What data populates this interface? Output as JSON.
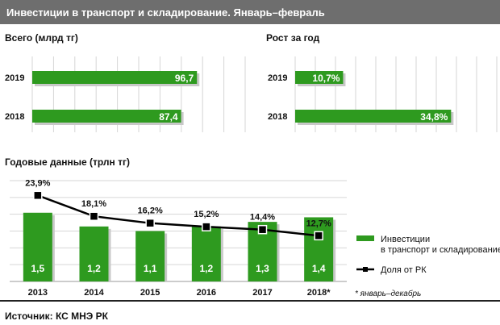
{
  "title": "Инвестиции  в транспорт и складирование. Январь–февраль",
  "source": "Источник:  КС  МНЭ РК",
  "footnote": "* январь–декабрь",
  "colors": {
    "bar": "#2e9a1f",
    "line": "#000000",
    "header": "#6e6e6e"
  },
  "chart_data": [
    {
      "type": "bar",
      "orientation": "horizontal",
      "title": "Всего (млрд тг)",
      "categories": [
        "2019",
        "2018"
      ],
      "values": [
        96.7,
        87.4
      ],
      "labels": [
        "96,7",
        "87,4"
      ],
      "xlim": [
        0,
        125
      ],
      "grid": true
    },
    {
      "type": "bar",
      "orientation": "horizontal",
      "title": "Рост за год",
      "categories": [
        "2019",
        "2018"
      ],
      "values": [
        10.7,
        34.8
      ],
      "labels": [
        "10,7%",
        "34,8%"
      ],
      "xlim": [
        0,
        45
      ],
      "grid": true
    },
    {
      "type": "bar+line",
      "title": "Годовые данные (трлн тг)",
      "categories": [
        "2013",
        "2014",
        "2015",
        "2016",
        "2017",
        "2018*"
      ],
      "series": [
        {
          "name": "Инвестиции в транспорт и складирование",
          "type": "bar",
          "values": [
            1.5,
            1.2,
            1.1,
            1.2,
            1.3,
            1.4
          ],
          "labels": [
            "1,5",
            "1,2",
            "1,1",
            "1,2",
            "1,3",
            "1,4"
          ]
        },
        {
          "name": "Доля от РК",
          "type": "line",
          "values": [
            23.9,
            18.1,
            16.2,
            15.2,
            14.4,
            12.7
          ],
          "labels": [
            "23,9%",
            "18,1%",
            "16,2%",
            "15,2%",
            "14,4%",
            "12,7%"
          ]
        }
      ],
      "ylim_bar": [
        0,
        2.2
      ],
      "ylim_line": [
        0,
        28
      ],
      "legend": [
        "Инвестиции",
        "в транспорт и складирование",
        "Доля от РК"
      ],
      "legend_position": "right",
      "grid": true
    }
  ]
}
